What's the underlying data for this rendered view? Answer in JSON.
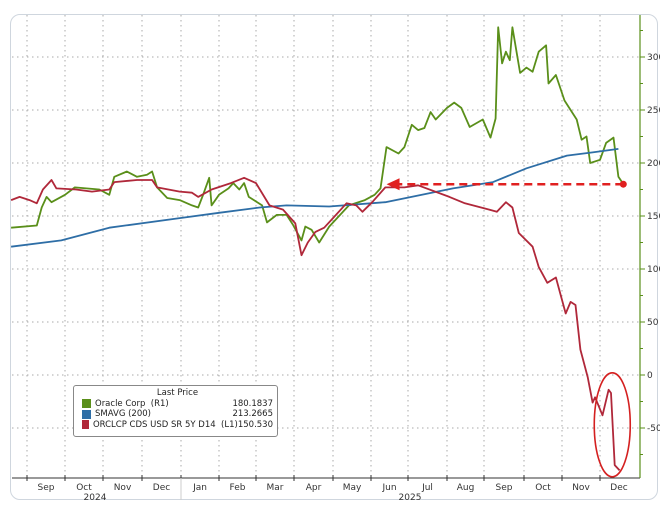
{
  "chart_data": {
    "type": "line",
    "title": "",
    "xlabel": "",
    "ylabel": "",
    "y_ticks": [
      300,
      250,
      200,
      150,
      100,
      50,
      0,
      -50
    ],
    "ylim": [
      -100,
      340
    ],
    "y_axis_side": "right",
    "grid": true,
    "x_tick_labels": [
      "Sep",
      "Oct",
      "Nov",
      "Dec",
      "Jan",
      "Feb",
      "Mar",
      "Apr",
      "May",
      "Jun",
      "Jul",
      "Aug",
      "Sep",
      "Oct",
      "Nov",
      "Dec"
    ],
    "year_labels": [
      "2024",
      "2025"
    ],
    "legend": {
      "title": "Last Price",
      "placement": "bottom-left",
      "entries": [
        {
          "name": "Oracle Corp  (R1)",
          "value": "180.1837",
          "color": "#5a8f1a"
        },
        {
          "name": "SMAVG (200)",
          "value": "213.2665",
          "color": "#2e6ea6"
        },
        {
          "name": "ORCLCP CDS USD SR 5Y D14  (L1)",
          "value": "150.530",
          "color": "#b0283a"
        }
      ]
    },
    "series": [
      {
        "name": "Oracle Corp  (R1)",
        "color": "#5a8f1a",
        "points": [
          [
            "2024-08-19",
            139
          ],
          [
            "2024-09-09",
            141
          ],
          [
            "2024-09-13",
            158
          ],
          [
            "2024-09-17",
            168
          ],
          [
            "2024-09-21",
            163
          ],
          [
            "2024-10-01",
            170
          ],
          [
            "2024-10-09",
            177
          ],
          [
            "2024-10-29",
            175
          ],
          [
            "2024-11-06",
            170
          ],
          [
            "2024-11-10",
            187
          ],
          [
            "2024-11-20",
            192
          ],
          [
            "2024-11-28",
            187
          ],
          [
            "2024-12-05",
            189
          ],
          [
            "2024-12-09",
            192
          ],
          [
            "2024-12-13",
            177
          ],
          [
            "2024-12-21",
            167
          ],
          [
            "2024-12-31",
            165
          ],
          [
            "2025-01-10",
            160
          ],
          [
            "2025-01-15",
            158
          ],
          [
            "2025-01-19",
            170
          ],
          [
            "2025-01-24",
            186
          ],
          [
            "2025-01-26",
            160
          ],
          [
            "2025-02-01",
            170
          ],
          [
            "2025-02-09",
            176
          ],
          [
            "2025-02-13",
            181
          ],
          [
            "2025-02-18",
            175
          ],
          [
            "2025-02-22",
            181
          ],
          [
            "2025-02-26",
            168
          ],
          [
            "2025-03-06",
            160
          ],
          [
            "2025-03-10",
            144
          ],
          [
            "2025-03-18",
            151
          ],
          [
            "2025-03-26",
            151
          ],
          [
            "2025-03-31",
            142
          ],
          [
            "2025-04-07",
            127
          ],
          [
            "2025-04-10",
            140
          ],
          [
            "2025-04-15",
            137
          ],
          [
            "2025-04-21",
            125
          ],
          [
            "2025-04-29",
            140
          ],
          [
            "2025-05-14",
            160
          ],
          [
            "2025-05-27",
            165
          ],
          [
            "2025-06-04",
            170
          ],
          [
            "2025-06-09",
            176
          ],
          [
            "2025-06-14",
            215
          ],
          [
            "2025-06-24",
            209
          ],
          [
            "2025-06-29",
            215
          ],
          [
            "2025-07-04",
            236
          ],
          [
            "2025-07-09",
            231
          ],
          [
            "2025-07-14",
            233
          ],
          [
            "2025-07-19",
            248
          ],
          [
            "2025-07-23",
            241
          ],
          [
            "2025-08-01",
            252
          ],
          [
            "2025-08-07",
            257
          ],
          [
            "2025-08-13",
            252
          ],
          [
            "2025-08-20",
            234
          ],
          [
            "2025-08-31",
            241
          ],
          [
            "2025-09-06",
            224
          ],
          [
            "2025-09-10",
            242
          ],
          [
            "2025-09-12",
            328
          ],
          [
            "2025-09-15",
            294
          ],
          [
            "2025-09-18",
            305
          ],
          [
            "2025-09-21",
            297
          ],
          [
            "2025-09-23",
            328
          ],
          [
            "2025-09-29",
            285
          ],
          [
            "2025-10-03",
            290
          ],
          [
            "2025-10-08",
            286
          ],
          [
            "2025-10-13",
            305
          ],
          [
            "2025-10-19",
            311
          ],
          [
            "2025-10-21",
            275
          ],
          [
            "2025-10-27",
            283
          ],
          [
            "2025-11-03",
            259
          ],
          [
            "2025-11-13",
            241
          ],
          [
            "2025-11-17",
            222
          ],
          [
            "2025-11-21",
            225
          ],
          [
            "2025-11-24",
            200
          ],
          [
            "2025-12-01",
            203
          ],
          [
            "2025-12-06",
            219
          ],
          [
            "2025-12-12",
            224
          ],
          [
            "2025-12-16",
            187
          ],
          [
            "2025-12-20",
            180.18
          ]
        ]
      },
      {
        "name": "SMAVG (200)",
        "color": "#2e6ea6",
        "points": [
          [
            "2024-08-19",
            121
          ],
          [
            "2024-09-29",
            127
          ],
          [
            "2024-11-06",
            139
          ],
          [
            "2024-12-31",
            148
          ],
          [
            "2025-02-01",
            153
          ],
          [
            "2025-03-04",
            158
          ],
          [
            "2025-03-26",
            160
          ],
          [
            "2025-04-29",
            159
          ],
          [
            "2025-06-13",
            163
          ],
          [
            "2025-08-06",
            176
          ],
          [
            "2025-09-08",
            182
          ],
          [
            "2025-10-03",
            195
          ],
          [
            "2025-11-05",
            207
          ],
          [
            "2025-11-26",
            210
          ],
          [
            "2025-12-16",
            213.27
          ]
        ]
      },
      {
        "name": "ORCLCP CDS USD SR 5Y D14  (L1)",
        "color": "#b0283a",
        "points": [
          [
            "2024-08-19",
            165
          ],
          [
            "2024-08-26",
            168
          ],
          [
            "2024-09-03",
            165
          ],
          [
            "2024-09-09",
            162
          ],
          [
            "2024-09-14",
            175
          ],
          [
            "2024-09-21",
            184
          ],
          [
            "2024-09-25",
            176
          ],
          [
            "2024-10-10",
            175
          ],
          [
            "2024-10-23",
            173
          ],
          [
            "2024-11-06",
            175
          ],
          [
            "2024-11-10",
            182
          ],
          [
            "2024-11-28",
            184
          ],
          [
            "2024-12-09",
            184
          ],
          [
            "2024-12-13",
            177
          ],
          [
            "2024-12-31",
            173
          ],
          [
            "2025-01-10",
            172
          ],
          [
            "2025-01-15",
            168
          ],
          [
            "2025-01-26",
            175
          ],
          [
            "2025-02-11",
            181
          ],
          [
            "2025-02-22",
            186
          ],
          [
            "2025-03-01",
            181
          ],
          [
            "2025-03-12",
            160
          ],
          [
            "2025-03-23",
            156
          ],
          [
            "2025-04-02",
            143
          ],
          [
            "2025-04-07",
            113
          ],
          [
            "2025-04-12",
            125
          ],
          [
            "2025-04-18",
            135
          ],
          [
            "2025-04-25",
            139
          ],
          [
            "2025-05-01",
            148
          ],
          [
            "2025-05-12",
            162
          ],
          [
            "2025-05-20",
            160
          ],
          [
            "2025-05-25",
            154
          ],
          [
            "2025-06-02",
            163
          ],
          [
            "2025-06-13",
            177
          ],
          [
            "2025-06-29",
            177
          ],
          [
            "2025-07-09",
            179
          ],
          [
            "2025-08-03",
            168
          ],
          [
            "2025-08-16",
            162
          ],
          [
            "2025-09-05",
            156
          ],
          [
            "2025-09-11",
            154
          ],
          [
            "2025-09-18",
            163
          ],
          [
            "2025-09-23",
            158
          ],
          [
            "2025-09-28",
            134
          ],
          [
            "2025-10-08",
            121
          ],
          [
            "2025-10-13",
            102
          ],
          [
            "2025-10-20",
            87
          ],
          [
            "2025-10-27",
            92
          ],
          [
            "2025-11-04",
            58
          ],
          [
            "2025-11-08",
            69
          ],
          [
            "2025-11-12",
            66
          ],
          [
            "2025-11-16",
            24
          ],
          [
            "2025-11-22",
            -2
          ],
          [
            "2025-11-26",
            -26
          ],
          [
            "2025-11-28",
            -21
          ],
          [
            "2025-12-03",
            -38
          ],
          [
            "2025-12-08",
            -14
          ],
          [
            "2025-12-10",
            -17
          ],
          [
            "2025-12-13",
            -85
          ],
          [
            "2025-12-17",
            -90
          ]
        ]
      }
    ],
    "annotations": {
      "arrow": {
        "from": [
          "2025-12-20",
          180
        ],
        "to": [
          "2025-06-14",
          180
        ],
        "color": "#e02020",
        "style": "dashed"
      },
      "ellipse": {
        "center": [
          "2025-12-11",
          -47
        ],
        "color": "#d42020"
      }
    }
  }
}
